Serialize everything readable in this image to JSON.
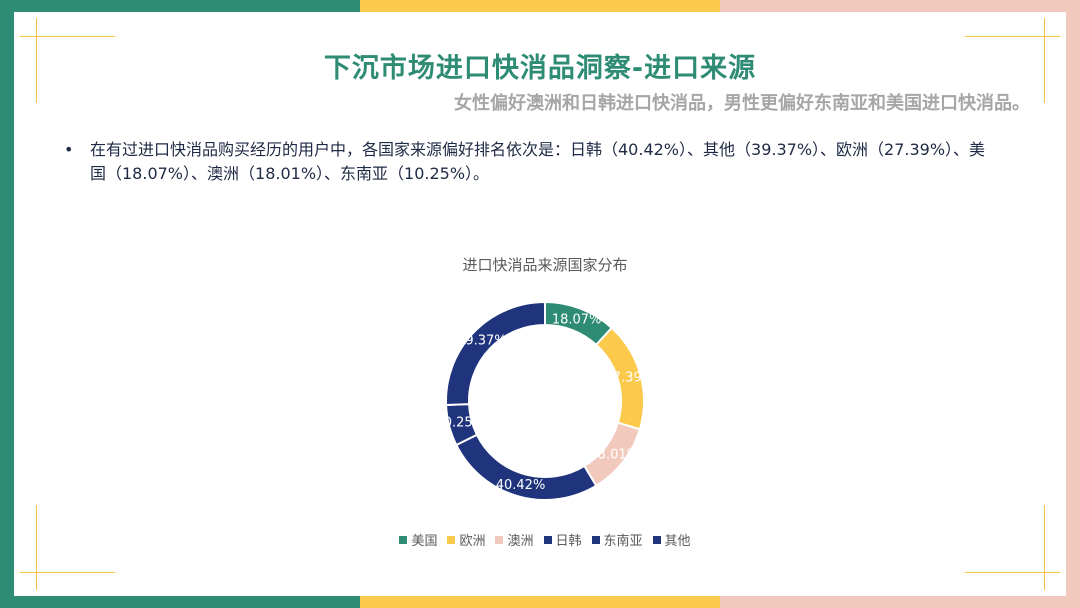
{
  "slide": {
    "title": "下沉市场进口快消品洞察-进口来源",
    "subtitle": "女性偏好澳洲和日韩进口快消品，男性更偏好东南亚和美国进口快消品。",
    "bullet_symbol": "•",
    "bullet_text": "在有过进口快消品购买经历的用户中，各国家来源偏好排名依次是：日韩（40.42%）、其他（39.37%）、欧洲（27.39%）、美国（18.07%）、澳洲（18.01%）、东南亚（10.25%）。"
  },
  "colors": {
    "teal": "#2e8b74",
    "yellow": "#fbc94b",
    "pink": "#f1c9bd",
    "navy": "#20347e"
  },
  "chart_data": {
    "type": "pie",
    "title": "进口快消品来源国家分布",
    "legend_position": "bottom",
    "series": [
      {
        "name": "美国",
        "value": 18.07,
        "label": "18.07%",
        "color": "#2e8b74"
      },
      {
        "name": "欧洲",
        "value": 27.39,
        "label": "27.39%",
        "color": "#fbc94b"
      },
      {
        "name": "澳洲",
        "value": 18.01,
        "label": "18.01%",
        "color": "#f1c9bd"
      },
      {
        "name": "日韩",
        "value": 40.42,
        "label": "40.42%",
        "color": "#20347e"
      },
      {
        "name": "东南亚",
        "value": 10.25,
        "label": "10.25%",
        "color": "#20347e"
      },
      {
        "name": "其他",
        "value": 39.37,
        "label": "39.37%",
        "color": "#20347e"
      }
    ]
  }
}
